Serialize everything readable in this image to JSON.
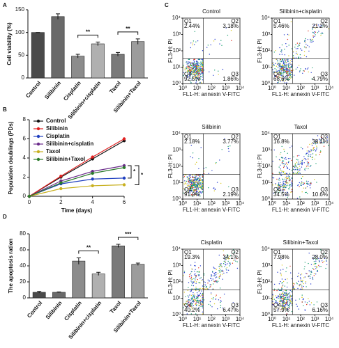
{
  "chart_data": [
    {
      "type": "bar",
      "panel": "A",
      "ylabel": "Cell viability (%)",
      "categories": [
        "Control",
        "Silibinin",
        "Cisplatin",
        "Silibinin+cisplatin",
        "Taxol",
        "Silibinin+Taxol"
      ],
      "values": [
        100,
        135,
        48,
        75,
        52,
        80
      ],
      "errors": [
        0,
        6,
        4,
        4,
        4,
        6
      ],
      "colors": [
        "#4a4a4a",
        "#6a6a6a",
        "#8c8c8c",
        "#b0b0b0",
        "#7a7a7a",
        "#9c9c9c"
      ],
      "ylim": [
        0,
        150
      ],
      "yticks": [
        0,
        50,
        100,
        150
      ],
      "annotations": [
        "**",
        "**"
      ]
    },
    {
      "type": "line",
      "panel": "B",
      "xlabel": "Time (days)",
      "ylabel": "Population doublings (PDs)",
      "x": [
        0,
        2,
        4,
        6
      ],
      "xlim": [
        0,
        6
      ],
      "xticks": [
        0,
        2,
        4,
        6
      ],
      "ylim": [
        0,
        8
      ],
      "yticks": [
        0,
        2,
        4,
        6,
        8
      ],
      "series": [
        {
          "name": "Control",
          "color": "#111111",
          "values": [
            0,
            2.0,
            3.9,
            5.8
          ]
        },
        {
          "name": "Silibinin",
          "color": "#e02020",
          "values": [
            0,
            2.1,
            4.1,
            6.0
          ]
        },
        {
          "name": "Cisplatin",
          "color": "#2040c0",
          "values": [
            0,
            1.3,
            1.8,
            1.9
          ]
        },
        {
          "name": "Silibinin+cisplatin",
          "color": "#6a2a8a",
          "values": [
            0,
            1.6,
            2.6,
            3.2
          ]
        },
        {
          "name": "Taxol",
          "color": "#c8b020",
          "values": [
            0,
            0.8,
            1.1,
            1.2
          ]
        },
        {
          "name": "Silibinin+Taxol",
          "color": "#2a7a2a",
          "values": [
            0,
            1.4,
            2.4,
            3.0
          ]
        }
      ],
      "annotations": [
        "*",
        "*"
      ]
    },
    {
      "type": "flow",
      "panel": "C",
      "xlabel": "FL1-H: annexin V-FITC",
      "ylabel": "FL3-H: PI",
      "xlim": [
        1,
        10000
      ],
      "ylim": [
        1,
        10000
      ],
      "xticks": [
        {
          "value": 1,
          "label": "10⁰"
        },
        {
          "value": 10,
          "label": "10¹"
        },
        {
          "value": 100,
          "label": "10²"
        },
        {
          "value": 1000,
          "label": "10³"
        },
        {
          "value": 10000,
          "label": "10⁴"
        }
      ],
      "yticks": [
        {
          "value": 1,
          "label": "10⁰"
        },
        {
          "value": 10,
          "label": "10¹"
        },
        {
          "value": 100,
          "label": "10²"
        },
        {
          "value": 1000,
          "label": "10³"
        },
        {
          "value": 10000,
          "label": "10⁴"
        }
      ],
      "plots": [
        {
          "title": "Control",
          "categories": [
            "Q1",
            "Q2",
            "Q3",
            "Q4"
          ],
          "values": [
            2.44,
            3.18,
            1.86,
            92.5
          ],
          "value_labels": [
            "2.44%",
            "3.18%",
            "1.86%",
            "92.5%"
          ]
        },
        {
          "title": "Silibinin+cisplatin",
          "categories": [
            "Q1",
            "Q2",
            "Q3",
            "Q4"
          ],
          "values": [
            5.46,
            21.2,
            4.79,
            68.6
          ],
          "value_labels": [
            "5.46%",
            "21.2%",
            "4.79%",
            "68.6%"
          ]
        },
        {
          "title": "Silibinin",
          "categories": [
            "Q1",
            "Q2",
            "Q3",
            "Q4"
          ],
          "values": [
            2.18,
            3.77,
            2.19,
            91.9
          ],
          "value_labels": [
            "2.18%",
            "3.77%",
            "2.19%",
            "91.9%"
          ]
        },
        {
          "title": "Taxol",
          "categories": [
            "Q1",
            "Q2",
            "Q3",
            "Q4"
          ],
          "values": [
            16.8,
            38.1,
            10.6,
            34.5
          ],
          "value_labels": [
            "16.8%",
            "38.1%",
            "10.6%",
            "34.5%"
          ]
        },
        {
          "title": "Cisplatin",
          "categories": [
            "Q1",
            "Q2",
            "Q3",
            "Q4"
          ],
          "values": [
            19.3,
            34.1,
            6.47,
            40.2
          ],
          "value_labels": [
            "19.3%",
            "34.1%",
            "6.47%",
            "40.2%"
          ]
        },
        {
          "title": "Silibinin+Taxol",
          "categories": [
            "Q1",
            "Q2",
            "Q3",
            "Q4"
          ],
          "values": [
            7.98,
            28.0,
            6.16,
            57.9
          ],
          "value_labels": [
            "7.98%",
            "28.0%",
            "6.16%",
            "57.9%"
          ]
        }
      ]
    },
    {
      "type": "bar",
      "panel": "D",
      "ylabel": "The apoptosis ration",
      "categories": [
        "Control",
        "Silibinin",
        "Cisplatin",
        "Silibinin+cisplatin",
        "Taxol",
        "Silibinin+Taxol"
      ],
      "values": [
        7,
        7,
        46,
        30,
        65,
        42
      ],
      "errors": [
        1,
        0.5,
        4,
        2,
        2,
        1.5
      ],
      "colors": [
        "#4a4a4a",
        "#6a6a6a",
        "#8c8c8c",
        "#b0b0b0",
        "#7a7a7a",
        "#9c9c9c"
      ],
      "ylim": [
        0,
        80
      ],
      "yticks": [
        0,
        20,
        40,
        60,
        80
      ],
      "annotations": [
        "**",
        "***"
      ]
    }
  ]
}
